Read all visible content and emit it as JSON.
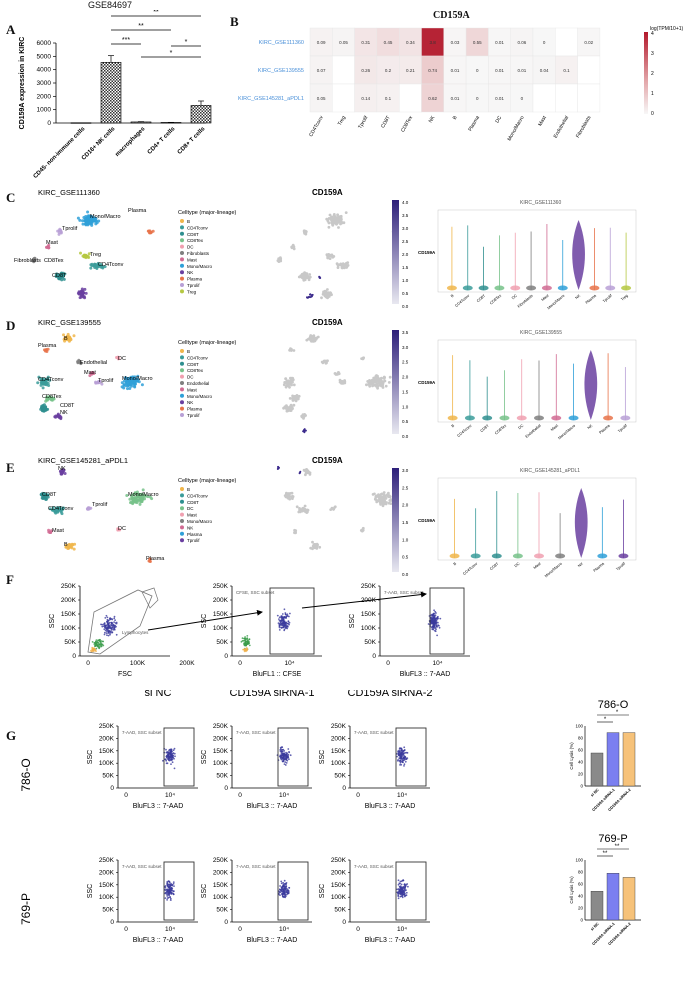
{
  "panel_letters": {
    "a": "A",
    "b": "B",
    "c": "C",
    "d": "D",
    "e": "E",
    "f": "F",
    "g": "G"
  },
  "colors": {
    "bar_a": "#444444",
    "heat_max": "#b2182b",
    "heat_min": "#f7f7f7",
    "link": "#4a90d9",
    "umap_gray": "#c8c8c8",
    "expr": "#3c2b8c",
    "flow_dot": "#3b3b9e",
    "bar_si_nc": "#8a8a8a",
    "bar_sirna1": "#7b7ff0",
    "bar_sirna2": "#f6c27a"
  },
  "panel_a": {
    "title": "GSE84697",
    "ylabel": "CD159A expression in KIRC",
    "yticks": [
      "0",
      "1000",
      "2000",
      "3000",
      "4000",
      "5000",
      "6000"
    ],
    "sig": [
      "**",
      "**",
      "***",
      "*",
      "*"
    ]
  },
  "panel_b": {
    "title": "CD159A",
    "legend_title": "log(TPM/10+1)",
    "legend_ticks": [
      "4",
      "3",
      "2",
      "1",
      "0"
    ],
    "rows": [
      "KIRC_GSE111360",
      "KIRC_GSE139555",
      "KIRC_GSE145281_aPDL1"
    ],
    "cols": [
      "CD4Tconv",
      "Treg",
      "Tprolif",
      "CD8T",
      "CD8Tex",
      "NK",
      "B",
      "Plasma",
      "DC",
      "Mono/Macro",
      "Mast",
      "Endothelial",
      "Fibroblasts"
    ],
    "cells": [
      [
        "0.09",
        "0.05",
        "0.31",
        "0.45",
        "0.34",
        "3.8",
        "0.03",
        "0.55",
        "0.01",
        "0.06",
        "0",
        "",
        "0.02"
      ],
      [
        "0.07",
        "",
        "0.26",
        "0.2",
        "0.21",
        "0.74",
        "0.01",
        "0",
        "0.01",
        "0.01",
        "0.04",
        "0.1",
        ""
      ],
      [
        "0.05",
        "",
        "0.14",
        "0.1",
        "",
        "0.62",
        "0.01",
        "0",
        "0.01",
        "0",
        "",
        "",
        ""
      ]
    ]
  },
  "panel_c": {
    "umap_title": "KIRC_GSE111360",
    "expr_title": "CD159A",
    "violin_title": "KIRC_GSE111360",
    "legend_title": "Celltype (major-lineage)",
    "legend": [
      "B",
      "CD4Tconv",
      "CD8T",
      "CD8Tex",
      "DC",
      "Fibroblasts",
      "Mast",
      "Mono/Macro",
      "NK",
      "Plasma",
      "Tprolif",
      "Treg"
    ],
    "umap_labels": [
      "Mono/Macro",
      "Plasma",
      "Tprolif",
      "Mast",
      "Fibroblasts",
      "Treg",
      "CD4Tconv",
      "CD8T",
      "CD8Tex"
    ],
    "scale": [
      "4.0",
      "3.5",
      "3.0",
      "2.5",
      "2.0",
      "1.5",
      "1.0",
      "0.5",
      "0.0"
    ],
    "violin_x": [
      "B",
      "CD4Tconv",
      "CD8T",
      "CD8Tex",
      "DC",
      "Fibroblasts",
      "Mast",
      "Mono/Macro",
      "NK",
      "Plasma",
      "Tprolif",
      "Treg"
    ],
    "ylabel": "CD159A"
  },
  "panel_d": {
    "umap_title": "KIRC_GSE139555",
    "expr_title": "CD159A",
    "violin_title": "KIRC_GSE139555",
    "legend_title": "Celltype (major-lineage)",
    "legend": [
      "B",
      "CD4Tconv",
      "CD8T",
      "CD8Tex",
      "DC",
      "Endothelial",
      "Mast",
      "Mono/Macro",
      "NK",
      "Plasma",
      "Tprolif"
    ],
    "umap_labels": [
      "B",
      "Plasma",
      "Endothelial",
      "DC",
      "Mast",
      "CD4Tconv",
      "Tprolif",
      "Mono/Macro",
      "CD8Tex",
      "CD8T",
      "NK"
    ],
    "scale": [
      "3.5",
      "3.0",
      "2.5",
      "2.0",
      "1.5",
      "1.0",
      "0.5",
      "0.0"
    ],
    "violin_x": [
      "B",
      "CD4Tconv",
      "CD8T",
      "CD8Tex",
      "DC",
      "Endothelial",
      "Mast",
      "Mono/Macro",
      "NK",
      "Plasma",
      "Tprolif"
    ],
    "ylabel": "CD159A"
  },
  "panel_e": {
    "umap_title": "KIRC_GSE145281_aPDL1",
    "expr_title": "CD159A",
    "violin_title": "KIRC_GSE145281_aPDL1",
    "legend_title": "Celltype (major-lineage)",
    "legend": [
      "B",
      "CD4Tconv",
      "CD8T",
      "DC",
      "Mast",
      "Mono/Macro",
      "NK",
      "Plasma",
      "Tprolif"
    ],
    "umap_labels": [
      "NK",
      "CD8T",
      "Tprolif",
      "CD4Tconv",
      "Mono/Macro",
      "Mast",
      "DC",
      "B",
      "Plasma"
    ],
    "scale": [
      "3.0",
      "2.5",
      "2.0",
      "1.5",
      "1.0",
      "0.5",
      "0.0"
    ],
    "violin_x": [
      "B",
      "CD4Tconv",
      "CD8T",
      "DC",
      "Mast",
      "Mono/Macro",
      "NK",
      "Plasma",
      "Tprolif"
    ],
    "ylabel": "CD159A"
  },
  "panel_f": {
    "plots": [
      {
        "xlabel": "FSC",
        "ylabel": "SSC",
        "xticks": [
          "0",
          "100K",
          "200K"
        ],
        "gate": "Lymphocytes"
      },
      {
        "xlabel": "BluFL1 :: CFSE",
        "ylabel": "SSC",
        "xticks": [
          "0",
          "10⁴"
        ],
        "gate": "CFSE, SSC subset"
      },
      {
        "xlabel": "BluFL3 :: 7-AAD",
        "ylabel": "SSC",
        "xticks": [
          "0",
          "10⁴"
        ],
        "gate": "7-AAD, SSC subset"
      }
    ],
    "yticks": [
      "250K",
      "200K",
      "150K",
      "100K",
      "50K",
      "0"
    ]
  },
  "panel_g": {
    "col_titles": [
      "si NC",
      "CD159A siRNA-1",
      "CD159A siRNA-2"
    ],
    "rows": [
      "786-O",
      "769-P"
    ],
    "ylabel": "SSC",
    "xlabel": "BluFL3 :: 7-AAD",
    "xticks": [
      "0",
      "10⁴"
    ],
    "yticks": [
      "250K",
      "200K",
      "150K",
      "100K",
      "50K",
      "0"
    ],
    "gate": "7-AAD, SSC subset",
    "bar_titles": [
      "786-O",
      "769-P"
    ],
    "bar_ylabel": "Cell Lysis (%)",
    "bar_yticks": [
      "100",
      "80",
      "60",
      "40",
      "20",
      "0"
    ],
    "bar_x": [
      "si NC",
      "CD159A siRNA-1",
      "CD159A siRNA-2"
    ],
    "sig_786": [
      "*",
      "*"
    ],
    "sig_769": [
      "**",
      "**"
    ]
  },
  "chart_data": [
    {
      "type": "bar",
      "title": "GSE84697",
      "ylabel": "CD159A expression in KIRC",
      "ylim": [
        0,
        6000
      ],
      "categories": [
        "CD45- non-immune cells",
        "CD16+ NK cells",
        "macrophages",
        "CD4+ T cells",
        "CD8+ T cells"
      ],
      "values": [
        20,
        4550,
        80,
        40,
        1320
      ]
    },
    {
      "type": "bar",
      "title": "786-O",
      "ylabel": "Cell Lysis (%)",
      "ylim": [
        0,
        100
      ],
      "categories": [
        "si NC",
        "CD159A siRNA-1",
        "CD159A siRNA-2"
      ],
      "values": [
        55,
        89,
        89
      ]
    },
    {
      "type": "bar",
      "title": "769-P",
      "ylabel": "Cell Lysis (%)",
      "ylim": [
        0,
        100
      ],
      "categories": [
        "si NC",
        "CD159A siRNA-1",
        "CD159A siRNA-2"
      ],
      "values": [
        48,
        78,
        71
      ]
    }
  ]
}
